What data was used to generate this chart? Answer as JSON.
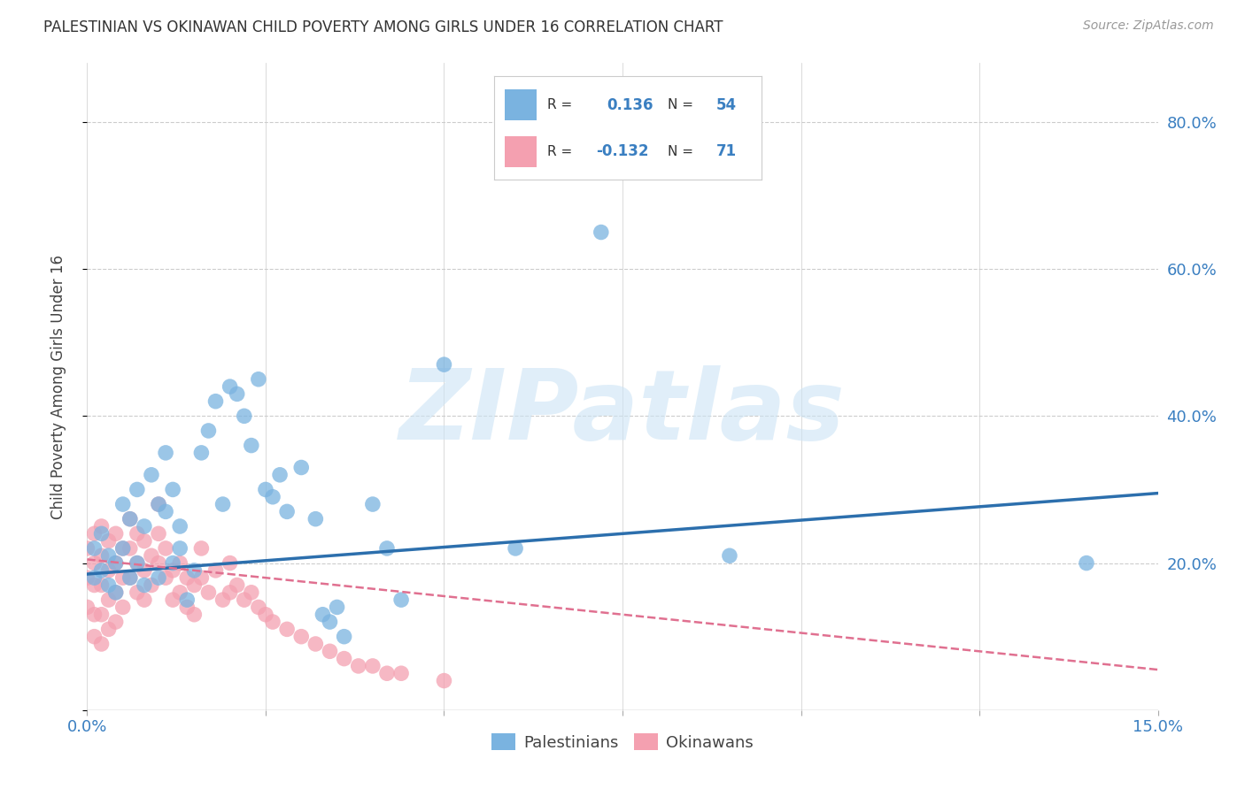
{
  "title": "PALESTINIAN VS OKINAWAN CHILD POVERTY AMONG GIRLS UNDER 16 CORRELATION CHART",
  "source": "Source: ZipAtlas.com",
  "ylabel": "Child Poverty Among Girls Under 16",
  "xmin": 0.0,
  "xmax": 0.15,
  "ymin": 0.0,
  "ymax": 0.88,
  "yticks": [
    0.0,
    0.2,
    0.4,
    0.6,
    0.8
  ],
  "ytick_labels": [
    "",
    "20.0%",
    "40.0%",
    "60.0%",
    "80.0%"
  ],
  "xticks": [
    0.0,
    0.025,
    0.05,
    0.075,
    0.1,
    0.125,
    0.15
  ],
  "background_color": "#ffffff",
  "grid_color": "#cccccc",
  "blue_color": "#7ab3e0",
  "pink_color": "#f4a0b0",
  "blue_line_color": "#2c6fad",
  "pink_line_color": "#e07090",
  "watermark": "ZIPatlas",
  "pal_line_x0": 0.0,
  "pal_line_y0": 0.185,
  "pal_line_x1": 0.15,
  "pal_line_y1": 0.295,
  "oki_line_x0": 0.0,
  "oki_line_y0": 0.205,
  "oki_line_x1": 0.15,
  "oki_line_y1": 0.055,
  "palestinians_x": [
    0.001,
    0.001,
    0.002,
    0.002,
    0.003,
    0.003,
    0.004,
    0.004,
    0.005,
    0.005,
    0.006,
    0.006,
    0.007,
    0.007,
    0.008,
    0.008,
    0.009,
    0.01,
    0.01,
    0.011,
    0.011,
    0.012,
    0.012,
    0.013,
    0.013,
    0.014,
    0.015,
    0.016,
    0.017,
    0.018,
    0.019,
    0.02,
    0.021,
    0.022,
    0.023,
    0.024,
    0.025,
    0.026,
    0.027,
    0.028,
    0.03,
    0.032,
    0.033,
    0.034,
    0.035,
    0.036,
    0.04,
    0.042,
    0.044,
    0.05,
    0.06,
    0.072,
    0.09,
    0.14
  ],
  "palestinians_y": [
    0.18,
    0.22,
    0.19,
    0.24,
    0.17,
    0.21,
    0.2,
    0.16,
    0.22,
    0.28,
    0.18,
    0.26,
    0.2,
    0.3,
    0.25,
    0.17,
    0.32,
    0.28,
    0.18,
    0.35,
    0.27,
    0.3,
    0.2,
    0.22,
    0.25,
    0.15,
    0.19,
    0.35,
    0.38,
    0.42,
    0.28,
    0.44,
    0.43,
    0.4,
    0.36,
    0.45,
    0.3,
    0.29,
    0.32,
    0.27,
    0.33,
    0.26,
    0.13,
    0.12,
    0.14,
    0.1,
    0.28,
    0.22,
    0.15,
    0.47,
    0.22,
    0.65,
    0.21,
    0.2
  ],
  "okinawans_x": [
    0.0,
    0.0,
    0.0,
    0.001,
    0.001,
    0.001,
    0.001,
    0.001,
    0.002,
    0.002,
    0.002,
    0.002,
    0.002,
    0.003,
    0.003,
    0.003,
    0.003,
    0.004,
    0.004,
    0.004,
    0.004,
    0.005,
    0.005,
    0.005,
    0.006,
    0.006,
    0.006,
    0.007,
    0.007,
    0.007,
    0.008,
    0.008,
    0.008,
    0.009,
    0.009,
    0.01,
    0.01,
    0.01,
    0.011,
    0.011,
    0.012,
    0.012,
    0.013,
    0.013,
    0.014,
    0.014,
    0.015,
    0.015,
    0.016,
    0.016,
    0.017,
    0.018,
    0.019,
    0.02,
    0.02,
    0.021,
    0.022,
    0.023,
    0.024,
    0.025,
    0.026,
    0.028,
    0.03,
    0.032,
    0.034,
    0.036,
    0.038,
    0.04,
    0.042,
    0.044,
    0.05
  ],
  "okinawans_y": [
    0.22,
    0.18,
    0.14,
    0.24,
    0.2,
    0.17,
    0.13,
    0.1,
    0.25,
    0.21,
    0.17,
    0.13,
    0.09,
    0.23,
    0.19,
    0.15,
    0.11,
    0.24,
    0.2,
    0.16,
    0.12,
    0.22,
    0.18,
    0.14,
    0.26,
    0.22,
    0.18,
    0.24,
    0.2,
    0.16,
    0.23,
    0.19,
    0.15,
    0.21,
    0.17,
    0.28,
    0.24,
    0.2,
    0.22,
    0.18,
    0.19,
    0.15,
    0.2,
    0.16,
    0.18,
    0.14,
    0.17,
    0.13,
    0.22,
    0.18,
    0.16,
    0.19,
    0.15,
    0.2,
    0.16,
    0.17,
    0.15,
    0.16,
    0.14,
    0.13,
    0.12,
    0.11,
    0.1,
    0.09,
    0.08,
    0.07,
    0.06,
    0.06,
    0.05,
    0.05,
    0.04
  ]
}
